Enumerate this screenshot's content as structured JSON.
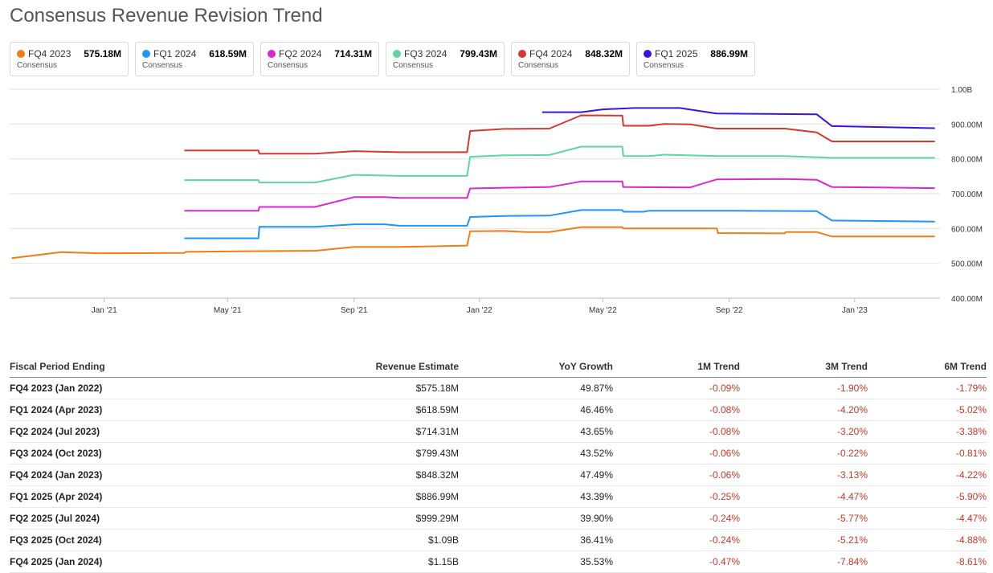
{
  "title": "Consensus Revenue Revision Trend",
  "cards": [
    {
      "name": "FQ4 2023",
      "value": "575.18M",
      "sub": "Consensus",
      "color": "#f07d14"
    },
    {
      "name": "FQ1 2024",
      "value": "618.59M",
      "sub": "Consensus",
      "color": "#2196f3"
    },
    {
      "name": "FQ2 2024",
      "value": "714.31M",
      "sub": "Consensus",
      "color": "#d62ad0"
    },
    {
      "name": "FQ3 2024",
      "value": "799.43M",
      "sub": "Consensus",
      "color": "#5fd6a0"
    },
    {
      "name": "FQ4 2024",
      "value": "848.32M",
      "sub": "Consensus",
      "color": "#d03a32"
    },
    {
      "name": "FQ1 2025",
      "value": "886.99M",
      "sub": "Consensus",
      "color": "#3b14d6"
    }
  ],
  "chart_data": {
    "type": "line",
    "title": "Consensus Revenue Revision Trend",
    "xlabel": "",
    "ylabel": "",
    "x_ticks": [
      "Jan '21",
      "May '21",
      "Sep '21",
      "Jan '22",
      "May '22",
      "Sep '22",
      "Jan '23"
    ],
    "y_ticks": [
      "1.00B",
      "900.00M",
      "800.00M",
      "700.00M",
      "600.00M",
      "500.00M",
      "400.00M"
    ],
    "ylim": [
      400,
      1000
    ],
    "y_unit": "M",
    "xlim": [
      "2020-10-01",
      "2023-03-25"
    ],
    "grid": true,
    "series": [
      {
        "name": "FQ4 2023",
        "color": "#f07d14",
        "points": [
          [
            "2020-10-03",
            515
          ],
          [
            "2020-11-20",
            532
          ],
          [
            "2020-12-25",
            529
          ],
          [
            "2021-03-20",
            530
          ],
          [
            "2021-03-21",
            533
          ],
          [
            "2021-06-01",
            535
          ],
          [
            "2021-07-25",
            536
          ],
          [
            "2021-09-01",
            547
          ],
          [
            "2021-10-15",
            547
          ],
          [
            "2021-12-20",
            551
          ],
          [
            "2021-12-23",
            592
          ],
          [
            "2022-01-25",
            593
          ],
          [
            "2022-02-15",
            590
          ],
          [
            "2022-03-10",
            590
          ],
          [
            "2022-04-10",
            604
          ],
          [
            "2022-05-20",
            604
          ],
          [
            "2022-05-21",
            600
          ],
          [
            "2022-08-20",
            600
          ],
          [
            "2022-08-21",
            587
          ],
          [
            "2022-10-25",
            586
          ],
          [
            "2022-10-26",
            590
          ],
          [
            "2022-11-25",
            590
          ],
          [
            "2022-12-10",
            577
          ],
          [
            "2023-01-10",
            577
          ],
          [
            "2023-03-20",
            577
          ]
        ]
      },
      {
        "name": "FQ1 2024",
        "color": "#2196f3",
        "points": [
          [
            "2021-03-20",
            572
          ],
          [
            "2021-05-31",
            572
          ],
          [
            "2021-06-01",
            605
          ],
          [
            "2021-07-25",
            605
          ],
          [
            "2021-09-01",
            612
          ],
          [
            "2021-10-01",
            612
          ],
          [
            "2021-10-15",
            608
          ],
          [
            "2021-12-20",
            608
          ],
          [
            "2021-12-23",
            633
          ],
          [
            "2022-01-25",
            636
          ],
          [
            "2022-03-10",
            637
          ],
          [
            "2022-04-10",
            653
          ],
          [
            "2022-05-20",
            653
          ],
          [
            "2022-05-21",
            648
          ],
          [
            "2022-06-10",
            648
          ],
          [
            "2022-06-15",
            651
          ],
          [
            "2022-09-01",
            651
          ],
          [
            "2022-11-25",
            650
          ],
          [
            "2022-12-10",
            623
          ],
          [
            "2023-03-20",
            620
          ]
        ]
      },
      {
        "name": "FQ2 2024",
        "color": "#d62ad0",
        "points": [
          [
            "2021-03-20",
            651
          ],
          [
            "2021-05-31",
            651
          ],
          [
            "2021-06-01",
            662
          ],
          [
            "2021-07-25",
            662
          ],
          [
            "2021-09-01",
            690
          ],
          [
            "2021-10-01",
            690
          ],
          [
            "2021-10-15",
            688
          ],
          [
            "2021-12-20",
            688
          ],
          [
            "2021-12-23",
            715
          ],
          [
            "2022-01-25",
            717
          ],
          [
            "2022-03-10",
            719
          ],
          [
            "2022-04-10",
            735
          ],
          [
            "2022-05-20",
            735
          ],
          [
            "2022-05-21",
            719
          ],
          [
            "2022-07-25",
            718
          ],
          [
            "2022-08-20",
            741
          ],
          [
            "2022-10-25",
            742
          ],
          [
            "2022-11-25",
            740
          ],
          [
            "2022-12-10",
            719
          ],
          [
            "2023-01-25",
            718
          ],
          [
            "2023-03-20",
            716
          ]
        ]
      },
      {
        "name": "FQ3 2024",
        "color": "#5fd6a0",
        "points": [
          [
            "2021-03-20",
            739
          ],
          [
            "2021-05-31",
            739
          ],
          [
            "2021-06-01",
            732
          ],
          [
            "2021-07-25",
            732
          ],
          [
            "2021-09-01",
            754
          ],
          [
            "2021-10-15",
            751
          ],
          [
            "2021-12-20",
            751
          ],
          [
            "2021-12-23",
            806
          ],
          [
            "2022-01-25",
            810
          ],
          [
            "2022-03-10",
            811
          ],
          [
            "2022-04-10",
            835
          ],
          [
            "2022-05-20",
            835
          ],
          [
            "2022-05-21",
            808
          ],
          [
            "2022-06-15",
            808
          ],
          [
            "2022-06-30",
            812
          ],
          [
            "2022-08-20",
            808
          ],
          [
            "2022-10-25",
            808
          ],
          [
            "2022-12-10",
            803
          ],
          [
            "2023-03-20",
            803
          ]
        ]
      },
      {
        "name": "FQ4 2024",
        "color": "#d03a32",
        "points": [
          [
            "2021-03-20",
            824
          ],
          [
            "2021-05-31",
            824
          ],
          [
            "2021-06-01",
            815
          ],
          [
            "2021-07-25",
            815
          ],
          [
            "2021-09-01",
            822
          ],
          [
            "2021-10-15",
            819
          ],
          [
            "2021-12-20",
            819
          ],
          [
            "2021-12-23",
            880
          ],
          [
            "2022-01-25",
            886
          ],
          [
            "2022-03-10",
            887
          ],
          [
            "2022-04-10",
            925
          ],
          [
            "2022-05-20",
            924
          ],
          [
            "2022-05-21",
            895
          ],
          [
            "2022-06-15",
            895
          ],
          [
            "2022-06-30",
            900
          ],
          [
            "2022-07-25",
            899
          ],
          [
            "2022-08-20",
            887
          ],
          [
            "2022-10-25",
            887
          ],
          [
            "2022-11-25",
            876
          ],
          [
            "2022-12-10",
            850
          ],
          [
            "2023-03-20",
            850
          ]
        ]
      },
      {
        "name": "FQ1 2025",
        "color": "#3b14d6",
        "points": [
          [
            "2022-03-03",
            934
          ],
          [
            "2022-04-10",
            934
          ],
          [
            "2022-05-01",
            942
          ],
          [
            "2022-06-01",
            946
          ],
          [
            "2022-07-15",
            946
          ],
          [
            "2022-08-20",
            930
          ],
          [
            "2022-11-25",
            928
          ],
          [
            "2022-12-10",
            894
          ],
          [
            "2023-03-20",
            888
          ]
        ]
      }
    ]
  },
  "table": {
    "headers": [
      "Fiscal Period Ending",
      "Revenue Estimate",
      "YoY Growth",
      "1M Trend",
      "3M Trend",
      "6M Trend"
    ],
    "rows": [
      [
        "FQ4 2023 (Jan 2022)",
        "$575.18M",
        "49.87%",
        "-0.09%",
        "-1.90%",
        "-1.79%"
      ],
      [
        "FQ1 2024 (Apr 2023)",
        "$618.59M",
        "46.46%",
        "-0.08%",
        "-4.20%",
        "-5.02%"
      ],
      [
        "FQ2 2024 (Jul 2023)",
        "$714.31M",
        "43.65%",
        "-0.08%",
        "-3.20%",
        "-3.38%"
      ],
      [
        "FQ3 2024 (Oct 2023)",
        "$799.43M",
        "43.52%",
        "-0.06%",
        "-0.22%",
        "-0.81%"
      ],
      [
        "FQ4 2024 (Jan 2023)",
        "$848.32M",
        "47.49%",
        "-0.06%",
        "-3.13%",
        "-4.22%"
      ],
      [
        "FQ1 2025 (Apr 2024)",
        "$886.99M",
        "43.39%",
        "-0.25%",
        "-4.47%",
        "-5.90%"
      ],
      [
        "FQ2 2025 (Jul 2024)",
        "$999.29M",
        "39.90%",
        "-0.24%",
        "-5.77%",
        "-4.47%"
      ],
      [
        "FQ3 2025 (Oct 2024)",
        "$1.09B",
        "36.41%",
        "-0.24%",
        "-5.21%",
        "-4.88%"
      ],
      [
        "FQ4 2025 (Jan 2024)",
        "$1.15B",
        "35.53%",
        "-0.47%",
        "-7.84%",
        "-8.61%"
      ]
    ]
  }
}
